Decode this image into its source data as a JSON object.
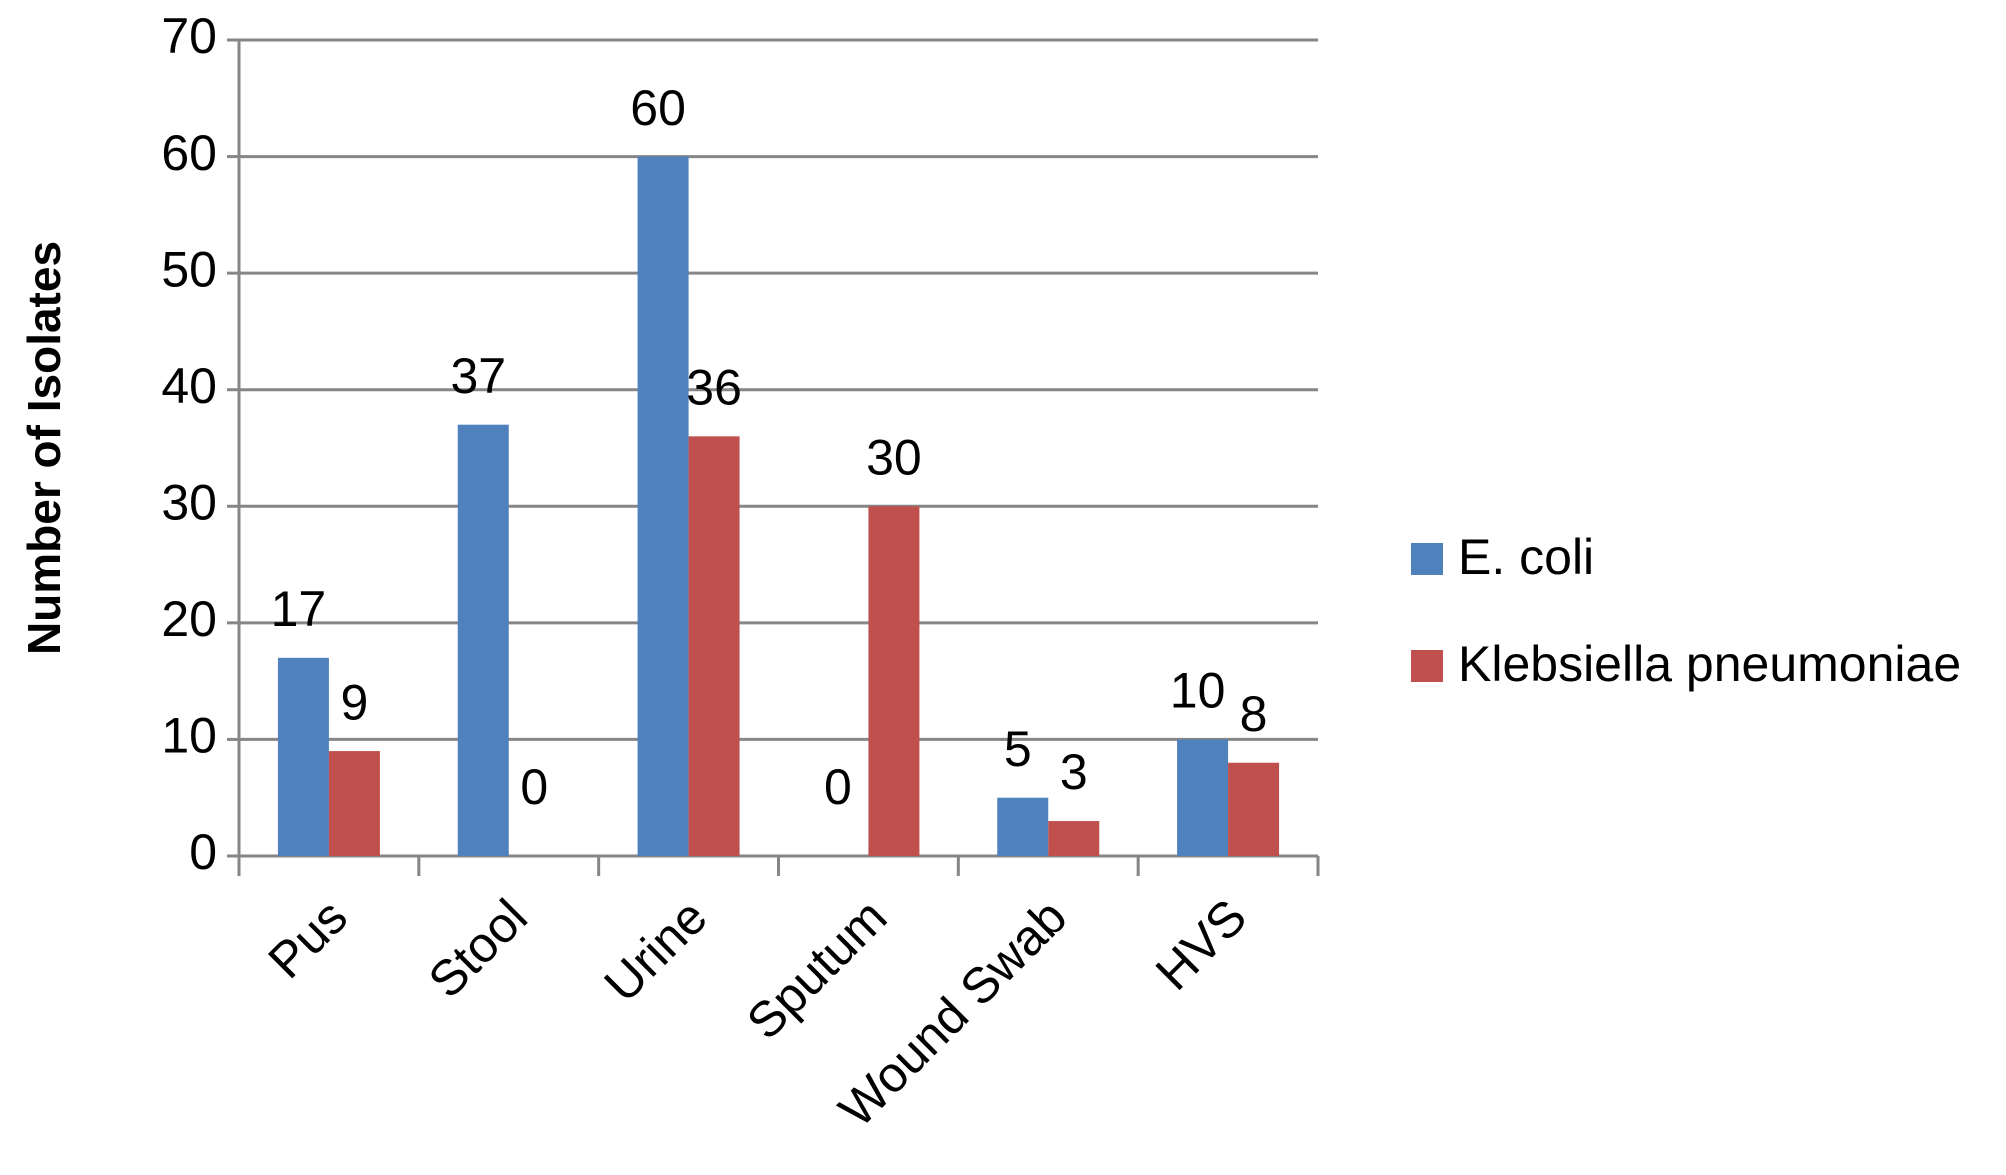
{
  "chart_data": {
    "type": "bar",
    "y_axis_label": "Number of Isolates",
    "categories": [
      "Pus",
      "Stool",
      "Urine",
      "Sputum",
      "Wound Swab",
      "HVS"
    ],
    "series": [
      {
        "name": "E. coli",
        "color": "#4f81bd",
        "values": [
          17,
          37,
          60,
          0,
          5,
          10
        ]
      },
      {
        "name": "Klebsiella pneumoniae",
        "color": "#c0504d",
        "values": [
          9,
          0,
          36,
          30,
          3,
          8
        ]
      }
    ],
    "ylim": [
      0,
      70
    ],
    "yticks": [
      0,
      10,
      20,
      30,
      40,
      50,
      60,
      70
    ],
    "grid": true,
    "legend": "right"
  }
}
